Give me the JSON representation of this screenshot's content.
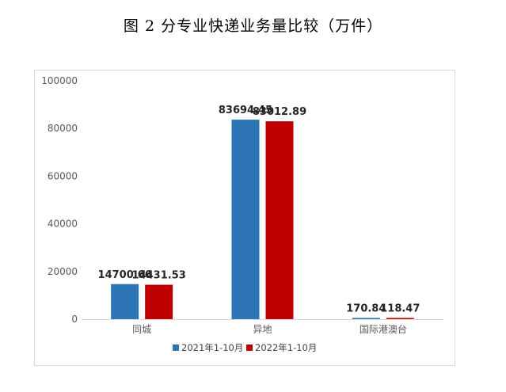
{
  "chart_data": {
    "type": "bar",
    "title": "图 2  分专业快递业务量比较（万件）",
    "categories": [
      "同城",
      "异地",
      "国际港澳台"
    ],
    "series": [
      {
        "name": "2021年1-10月",
        "values": [
          14700.66,
          83694.45,
          170.84
        ],
        "labels": [
          "14700.66",
          "83694.45",
          "170.84"
        ],
        "color": "#2e75b6"
      },
      {
        "name": "2022年1-10月",
        "values": [
          14431.53,
          83012.89,
          118.47
        ],
        "labels": [
          "14431.53",
          "83012.89",
          "118.47"
        ],
        "color": "#c00000"
      }
    ],
    "ylim": [
      0,
      100000
    ],
    "yticks": [
      "0",
      "20000",
      "40000",
      "60000",
      "80000",
      "100000"
    ],
    "ytick_values": [
      0,
      20000,
      40000,
      60000,
      80000,
      100000
    ],
    "grid": false,
    "legend": "bottom"
  }
}
